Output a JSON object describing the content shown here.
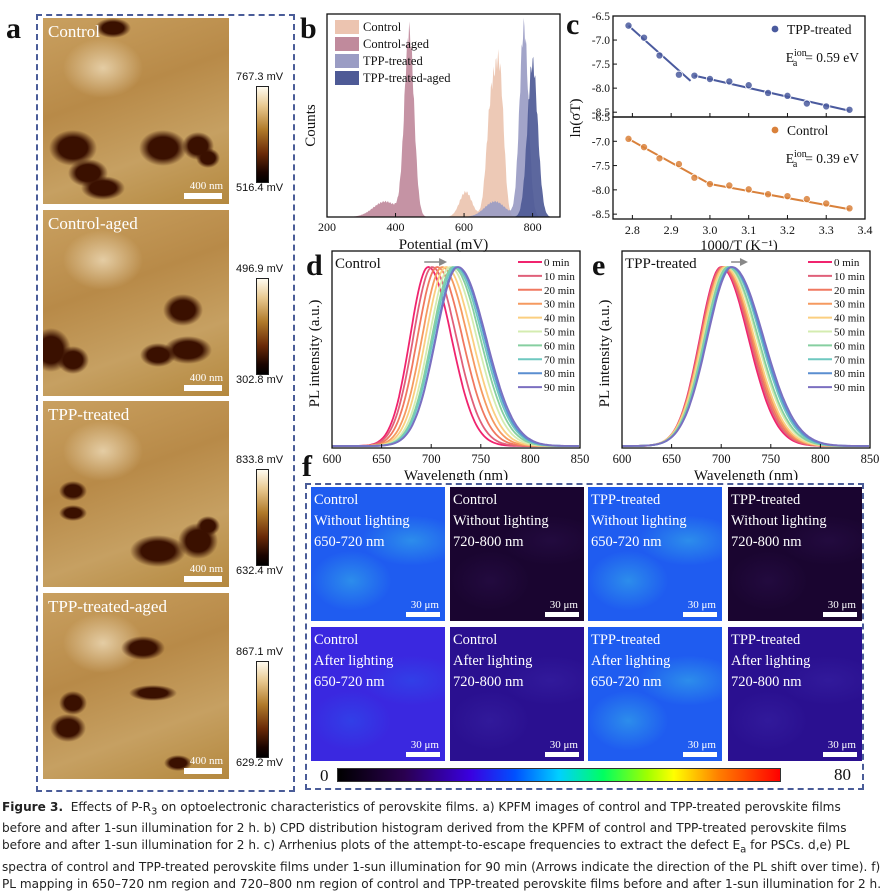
{
  "figure": {
    "panel_labels": [
      "a",
      "b",
      "c",
      "d",
      "e",
      "f"
    ],
    "caption": {
      "lead": "Figure 3.",
      "text_parts": [
        "Effects of P-R",
        "3",
        " on optoelectronic characteristics of perovskite films. a) KPFM images of control and TPP-treated perovskite films before and after 1-sun illumination for 2 h. b) CPD distribution histogram derived from the KPFM of control and TPP-treated perovskite films before and after 1-sun illumination for 2 h. c) Arrhenius plots of the attempt-to-escape frequencies to extract the defect E",
        "a",
        " for PSCs. d,e) PL spectra of control and TPP-treated perovskite films under 1-sun illumination for 90 min (Arrows indicate the direction of the PL shift over time). f) PL mapping in 650–720 nm region and 720–800 nm region of control and TPP-treated perovskite films before and after 1-sun illumination for 2 h."
      ]
    }
  },
  "panel_a": {
    "images": [
      {
        "title": "Control",
        "scale": "400 nm",
        "cmax": "767.3 mV",
        "cmin": "516.4 mV"
      },
      {
        "title": "Control-aged",
        "scale": "400 nm",
        "cmax": "496.9 mV",
        "cmin": "302.8 mV"
      },
      {
        "title": "TPP-treated",
        "scale": "400 nm",
        "cmax": "833.8 mV",
        "cmin": "632.4 mV"
      },
      {
        "title": "TPP-treated-aged",
        "scale": "400 nm",
        "cmax": "867.1 mV",
        "cmin": "629.2 mV"
      }
    ]
  },
  "panel_f": {
    "tiles": [
      {
        "lines": "Control\nWithout lighting\n650-720 nm",
        "scale": "30 μm",
        "intensity": 0.42
      },
      {
        "lines": "Control\nWithout lighting\n720-800 nm",
        "scale": "30 μm",
        "intensity": 0.05
      },
      {
        "lines": "TPP-treated\nWithout lighting\n650-720 nm",
        "scale": "30 μm",
        "intensity": 0.45
      },
      {
        "lines": "TPP-treated\nWithout lighting\n720-800 nm",
        "scale": "30 μm",
        "intensity": 0.04
      },
      {
        "lines": "Control\nAfter lighting\n650-720 nm",
        "scale": "30 μm",
        "intensity": 0.3
      },
      {
        "lines": "Control\nAfter lighting\n720-800 nm",
        "scale": "30 μm",
        "intensity": 0.15
      },
      {
        "lines": "TPP-treated\nAfter lighting\n650-720 nm",
        "scale": "30 μm",
        "intensity": 0.4
      },
      {
        "lines": "TPP-treated\nAfter lighting\n720-800 nm",
        "scale": "30 μm",
        "intensity": 0.12
      }
    ],
    "colorbar": {
      "min": "0",
      "max": "80"
    }
  },
  "chart_data": [
    {
      "id": "b",
      "type": "area",
      "title": "",
      "xlabel": "Potential (mV)",
      "ylabel": "Counts",
      "xlim": [
        200,
        880
      ],
      "xticks": [
        200,
        400,
        600,
        800
      ],
      "legend_position": "top-left",
      "series": [
        {
          "name": "Control",
          "color": "#ecc4b0",
          "peaks": [
            {
              "center": 605,
              "height": 0.13,
              "width": 18
            },
            {
              "center": 680,
              "height": 0.6,
              "width": 14
            },
            {
              "center": 705,
              "height": 0.66,
              "width": 12
            }
          ]
        },
        {
          "name": "Control-aged",
          "color": "#c08a9c",
          "peaks": [
            {
              "center": 370,
              "height": 0.08,
              "width": 35
            },
            {
              "center": 440,
              "height": 0.95,
              "width": 14
            }
          ]
        },
        {
          "name": "TPP-treated",
          "color": "#9a9cc4",
          "peaks": [
            {
              "center": 690,
              "height": 0.08,
              "width": 30
            },
            {
              "center": 775,
              "height": 0.98,
              "width": 13
            }
          ]
        },
        {
          "name": "TPP-treated-aged",
          "color": "#4e5a96",
          "peaks": [
            {
              "center": 800,
              "height": 0.8,
              "width": 15
            }
          ]
        }
      ]
    },
    {
      "id": "c",
      "type": "scatter",
      "xlabel": "1000/T (K⁻¹)",
      "ylabel": "ln(σT)",
      "xlim": [
        2.75,
        3.4
      ],
      "xticks": [
        2.8,
        2.9,
        3.0,
        3.1,
        3.2,
        3.3,
        3.4
      ],
      "ylim": [
        -8.6,
        -6.5
      ],
      "yticks": [
        -6.5,
        -7.0,
        -7.5,
        -8.0,
        -8.5
      ],
      "subplots": [
        {
          "name": "TPP-treated",
          "color": "#4a5a9e",
          "annotation": "E_a^ion = 0.59 eV",
          "x": [
            2.79,
            2.83,
            2.87,
            2.92,
            2.96,
            3.0,
            3.05,
            3.1,
            3.15,
            3.2,
            3.25,
            3.3,
            3.36
          ],
          "y": [
            -6.7,
            -6.95,
            -7.32,
            -7.72,
            -7.74,
            -7.81,
            -7.86,
            -7.94,
            -8.1,
            -8.16,
            -8.32,
            -8.38,
            -8.45
          ],
          "fit_segments": [
            [
              [
                2.79,
                -6.7
              ],
              [
                2.95,
                -7.85
              ]
            ],
            [
              [
                2.96,
                -7.74
              ],
              [
                3.36,
                -8.47
              ]
            ]
          ]
        },
        {
          "name": "Control",
          "color": "#d9813b",
          "annotation": "E_a^ion = 0.39 eV",
          "x": [
            2.79,
            2.83,
            2.87,
            2.92,
            2.96,
            3.0,
            3.05,
            3.1,
            3.15,
            3.2,
            3.25,
            3.3,
            3.36
          ],
          "y": [
            -6.95,
            -7.12,
            -7.35,
            -7.47,
            -7.75,
            -7.88,
            -7.91,
            -7.99,
            -8.09,
            -8.13,
            -8.19,
            -8.28,
            -8.38
          ],
          "fit_segments": [
            [
              [
                2.79,
                -6.95
              ],
              [
                3.0,
                -7.88
              ]
            ],
            [
              [
                3.0,
                -7.88
              ],
              [
                3.36,
                -8.4
              ]
            ]
          ]
        }
      ]
    },
    {
      "id": "d",
      "type": "line",
      "title": "Control",
      "xlabel": "Wavelength (nm)",
      "ylabel": "PL intensity (a.u.)",
      "xlim": [
        600,
        850
      ],
      "xticks": [
        600,
        650,
        700,
        750,
        800,
        850
      ],
      "legend_position": "top-right",
      "series": [
        {
          "name": "0 min",
          "color": "#f0246e",
          "peak": 697,
          "fwhm": 48
        },
        {
          "name": "10 min",
          "color": "#e0607a",
          "peak": 701,
          "fwhm": 50
        },
        {
          "name": "20 min",
          "color": "#f07860",
          "peak": 706,
          "fwhm": 52
        },
        {
          "name": "30 min",
          "color": "#f59a60",
          "peak": 711,
          "fwhm": 53
        },
        {
          "name": "40 min",
          "color": "#fbcf80",
          "peak": 715,
          "fwhm": 54
        },
        {
          "name": "50 min",
          "color": "#d4ecb0",
          "peak": 719,
          "fwhm": 55
        },
        {
          "name": "60 min",
          "color": "#86cfa0",
          "peak": 722,
          "fwhm": 56
        },
        {
          "name": "70 min",
          "color": "#6fc8c0",
          "peak": 724,
          "fwhm": 57
        },
        {
          "name": "80 min",
          "color": "#5a8ed0",
          "peak": 726,
          "fwhm": 57
        },
        {
          "name": "90 min",
          "color": "#7b6fc0",
          "peak": 727,
          "fwhm": 58
        }
      ]
    },
    {
      "id": "e",
      "type": "line",
      "title": "TPP-treated",
      "xlabel": "Wavelength (nm)",
      "ylabel": "PL intensity (a.u.)",
      "xlim": [
        600,
        850
      ],
      "xticks": [
        600,
        650,
        700,
        750,
        800,
        850
      ],
      "legend_position": "top-right",
      "series": [
        {
          "name": "0 min",
          "color": "#f0246e",
          "peak": 700,
          "fwhm": 56
        },
        {
          "name": "10 min",
          "color": "#e0607a",
          "peak": 701,
          "fwhm": 57
        },
        {
          "name": "20 min",
          "color": "#f07860",
          "peak": 702,
          "fwhm": 58
        },
        {
          "name": "30 min",
          "color": "#f59a60",
          "peak": 703,
          "fwhm": 59
        },
        {
          "name": "40 min",
          "color": "#fbcf80",
          "peak": 704,
          "fwhm": 60
        },
        {
          "name": "50 min",
          "color": "#d4ecb0",
          "peak": 706,
          "fwhm": 61
        },
        {
          "name": "60 min",
          "color": "#86cfa0",
          "peak": 707,
          "fwhm": 62
        },
        {
          "name": "70 min",
          "color": "#6fc8c0",
          "peak": 709,
          "fwhm": 63
        },
        {
          "name": "80 min",
          "color": "#5a8ed0",
          "peak": 710,
          "fwhm": 64
        },
        {
          "name": "90 min",
          "color": "#7b6fc0",
          "peak": 711,
          "fwhm": 65
        }
      ]
    }
  ]
}
